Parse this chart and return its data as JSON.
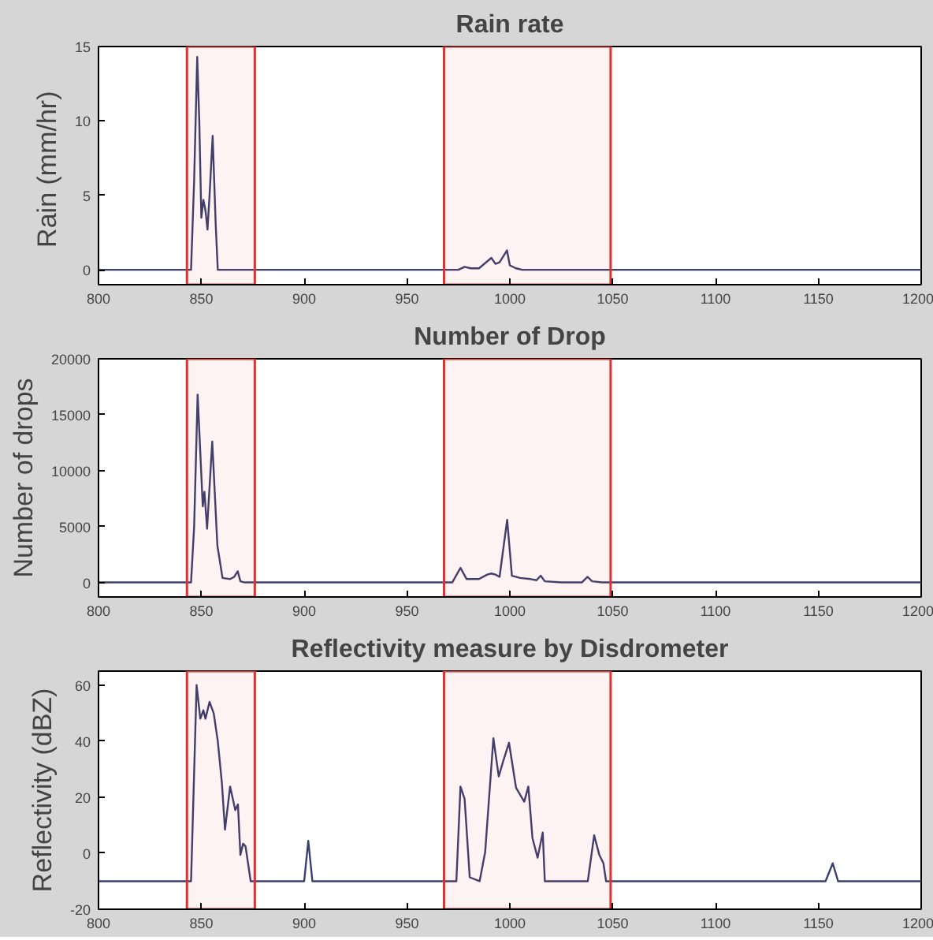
{
  "chart_data": [
    {
      "type": "line",
      "title": "Rain rate",
      "ylabel": "Rain  (mm/hr)",
      "xlim": [
        800,
        1200
      ],
      "xticks": [
        800,
        850,
        900,
        950,
        1000,
        1050,
        1100,
        1150,
        1200
      ],
      "ylim": [
        -1,
        15
      ],
      "yticks": [
        0,
        5,
        10,
        15
      ],
      "grid": false,
      "series": [
        {
          "color": "#3b3f6e",
          "x": [
            800,
            845,
            846.5,
            848,
            849,
            850,
            851,
            852,
            853,
            854,
            855.5,
            857,
            858,
            975,
            978,
            981,
            985,
            991,
            993,
            995,
            998.6,
            1000,
            1003,
            1006,
            1200
          ],
          "values": [
            0,
            0,
            6,
            14.3,
            10,
            3.5,
            4.7,
            4,
            2.7,
            5,
            9,
            3,
            0,
            0,
            0.2,
            0.1,
            0.1,
            0.8,
            0.4,
            0.5,
            1.3,
            0.3,
            0.1,
            0,
            0
          ]
        }
      ],
      "bands": [
        {
          "axis": "x",
          "from": 843,
          "to": 876,
          "color": "#e03030"
        },
        {
          "axis": "x",
          "from": 968,
          "to": 1049,
          "color": "#e03030"
        }
      ]
    },
    {
      "type": "line",
      "title": "Number of Drop",
      "ylabel": "Number of drops",
      "xlim": [
        800,
        1200
      ],
      "xticks": [
        800,
        850,
        900,
        950,
        1000,
        1050,
        1100,
        1150,
        1200
      ],
      "ylim": [
        -1300,
        20000
      ],
      "yticks": [
        0,
        5000,
        10000,
        15000,
        20000
      ],
      "grid": false,
      "series": [
        {
          "color": "#3b3f6e",
          "x": [
            800,
            845,
            846.5,
            848.2,
            850.7,
            851.5,
            852.8,
            855.3,
            857.8,
            860.3,
            864,
            866,
            867.7,
            869,
            871,
            972,
            976,
            979,
            985,
            989,
            991,
            993,
            995,
            998.7,
            1001,
            1005,
            1010,
            1013,
            1015,
            1017,
            1025,
            1035,
            1037.8,
            1040,
            1045,
            1200
          ],
          "values": [
            0,
            0,
            5000,
            16800,
            6800,
            8100,
            4800,
            12600,
            3300,
            400,
            300,
            500,
            1000,
            100,
            0,
            0,
            1300,
            300,
            300,
            700,
            800,
            700,
            500,
            5600,
            600,
            400,
            300,
            200,
            600,
            100,
            0,
            0,
            500,
            100,
            0,
            0
          ]
        }
      ],
      "bands": [
        {
          "axis": "x",
          "from": 843,
          "to": 876,
          "color": "#e03030"
        },
        {
          "axis": "x",
          "from": 968,
          "to": 1049,
          "color": "#e03030"
        }
      ]
    },
    {
      "type": "line",
      "title": "Reflectivity measure by Disdrometer",
      "ylabel": "Reflectivity (dBZ)",
      "xlim": [
        800,
        1200
      ],
      "xticks": [
        800,
        850,
        900,
        950,
        1000,
        1050,
        1100,
        1150,
        1200
      ],
      "ylim": [
        -20,
        65
      ],
      "yticks": [
        -20,
        0,
        20,
        40,
        60
      ],
      "grid": false,
      "series": [
        {
          "color": "#3b3f6e",
          "x": [
            800,
            845,
            847.7,
            849.5,
            851,
            852,
            854,
            856,
            858,
            860,
            861.5,
            864,
            865.3,
            866.5,
            867.8,
            869,
            870.3,
            871.5,
            874,
            900,
            902,
            904,
            974,
            976,
            978,
            980.5,
            985.3,
            988,
            992,
            994.6,
            997,
            999.6,
            1003,
            1007,
            1009,
            1011,
            1013.5,
            1016,
            1017,
            1037.9,
            1041,
            1043.5,
            1045.5,
            1046.8,
            1153.5,
            1157,
            1159.6,
            1200
          ],
          "values": [
            -10,
            -10,
            60,
            48,
            51,
            48,
            54,
            50,
            40,
            25,
            8.4,
            23.8,
            19.4,
            15.4,
            17.4,
            -0.6,
            3.4,
            2.4,
            -10,
            -10,
            4.4,
            -10,
            -10,
            23.8,
            19.4,
            -8.6,
            -10,
            0.4,
            41,
            27.4,
            33.4,
            39.4,
            23.4,
            18.4,
            23.8,
            5.4,
            -1.6,
            7.4,
            -10,
            -10,
            6.4,
            -0.6,
            -3.6,
            -10,
            -10,
            -3.6,
            -10,
            -10
          ]
        }
      ],
      "bands": [
        {
          "axis": "x",
          "from": 843,
          "to": 876,
          "color": "#e03030"
        },
        {
          "axis": "x",
          "from": 968,
          "to": 1049,
          "color": "#e03030"
        }
      ]
    }
  ]
}
